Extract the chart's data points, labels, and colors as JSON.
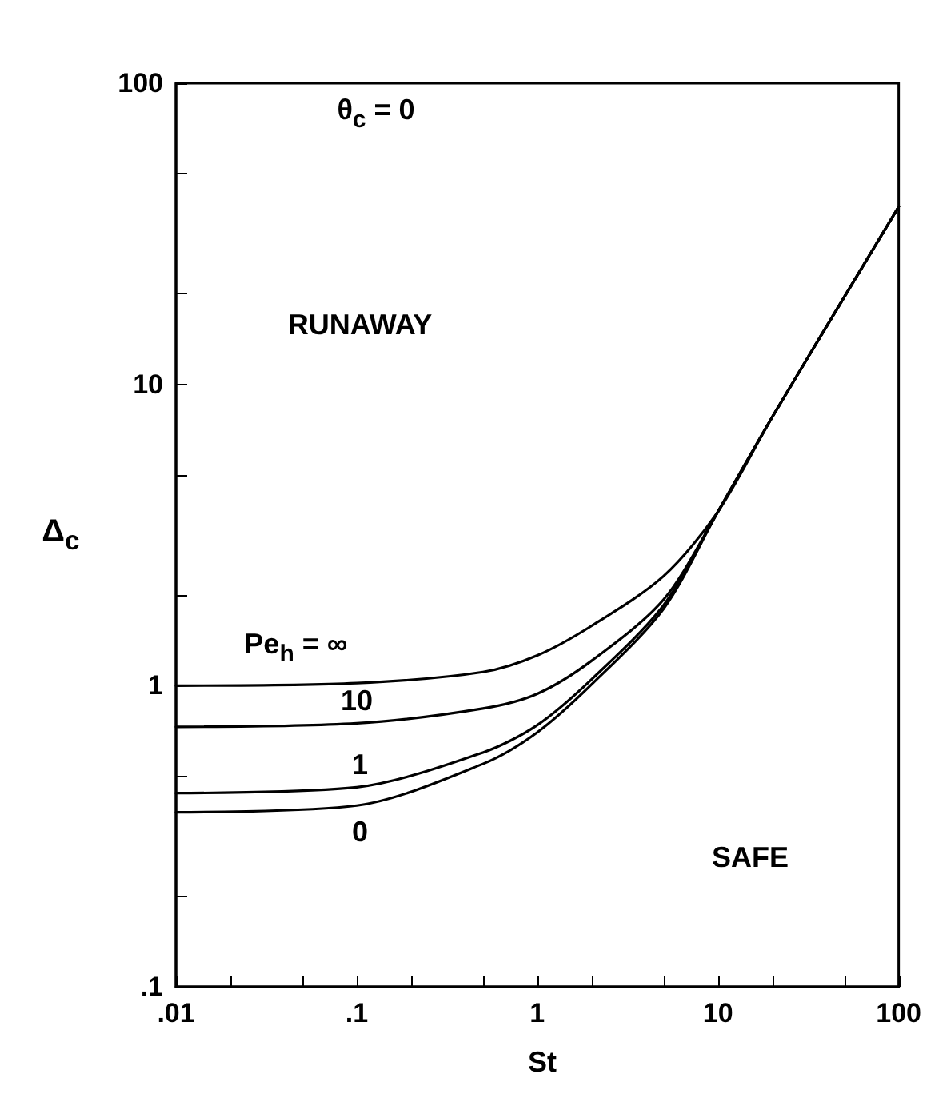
{
  "chart_data": {
    "type": "line",
    "xlabel": "St",
    "ylabel": "Δ$_{c}$",
    "log": "xy",
    "grid": false,
    "marker": "none",
    "line_style": "solid",
    "x": [
      0.01,
      0.1,
      0.5,
      1,
      2,
      5,
      10,
      20,
      50,
      100
    ],
    "series": [
      {
        "name": "Pe$_{h}$ = ∞",
        "color": "#000000",
        "values": [
          1.0,
          1.02,
          1.11,
          1.26,
          1.58,
          2.31,
          3.78,
          7.8,
          19.5,
          38.9
        ]
      },
      {
        "name": "10",
        "color": "#000000",
        "values": [
          0.73,
          0.75,
          0.84,
          0.94,
          1.21,
          1.93,
          3.78,
          7.8,
          19.5,
          38.9
        ]
      },
      {
        "name": "1",
        "color": "#000000",
        "values": [
          0.44,
          0.46,
          0.6,
          0.74,
          1.05,
          1.85,
          3.78,
          7.8,
          19.5,
          38.9
        ]
      },
      {
        "name": "0",
        "color": "#000000",
        "values": [
          0.38,
          0.4,
          0.55,
          0.7,
          1.01,
          1.8,
          3.78,
          7.8,
          19.5,
          38.9
        ]
      }
    ],
    "xlim": [
      0.01,
      100
    ],
    "ylim": [
      0.1,
      100
    ],
    "xticks": [
      {
        "value": 0.01,
        "label": ".01"
      },
      {
        "value": 0.02,
        "label": null
      },
      {
        "value": 0.05,
        "label": null
      },
      {
        "value": 0.1,
        "label": ".1"
      },
      {
        "value": 0.2,
        "label": null
      },
      {
        "value": 0.5,
        "label": null
      },
      1,
      {
        "value": 2,
        "label": null
      },
      {
        "value": 5,
        "label": null
      },
      10,
      {
        "value": 20,
        "label": null
      },
      {
        "value": 50,
        "label": null
      },
      100
    ],
    "yticks": [
      {
        "value": 0.1,
        "label": ".1"
      },
      {
        "value": 0.2,
        "label": null
      },
      {
        "value": 0.5,
        "label": null
      },
      1,
      {
        "value": 2,
        "label": null
      },
      {
        "value": 5,
        "label": null
      },
      10,
      {
        "value": 20,
        "label": null
      },
      {
        "value": 50,
        "label": null
      },
      100
    ],
    "annotations": [
      "θ$_{c}$ = 0",
      "RUNAWAY",
      "SAFE"
    ]
  }
}
